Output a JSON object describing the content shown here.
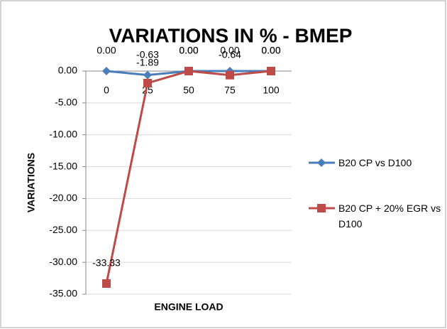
{
  "chart_data": {
    "type": "line",
    "title": "VARIATIONS IN % -  BMEP",
    "x_label": "ENGINE LOAD",
    "y_label": "VARIATIONS",
    "categories": [
      "0",
      "25",
      "50",
      "75",
      "100"
    ],
    "series": [
      {
        "name": "B20 CP vs D100",
        "color": "#4a7ebb",
        "marker": "diamond",
        "values": [
          0,
          -0.63,
          0,
          0,
          0
        ],
        "value_labels": [
          "0.00",
          "-0.63",
          "0.00",
          "0.00",
          "0.00"
        ]
      },
      {
        "name": "B20 CP + 20% EGR vs D100",
        "color": "#be4b48",
        "marker": "square",
        "values": [
          -33.33,
          -1.89,
          0,
          -0.64,
          0
        ],
        "value_labels": [
          "-33.33",
          "-1.89",
          "0.00",
          "-0.64",
          "0.00"
        ]
      }
    ],
    "ylim": [
      -35,
      0
    ],
    "yticks": [
      {
        "value": 0,
        "label": "0.00"
      },
      {
        "value": -5,
        "label": "-5.00"
      },
      {
        "value": -10,
        "label": "-10.00"
      },
      {
        "value": -15,
        "label": "-15.00"
      },
      {
        "value": -20,
        "label": "-20.00"
      },
      {
        "value": -25,
        "label": "-25.00"
      },
      {
        "value": -30,
        "label": "-30.00"
      },
      {
        "value": -35,
        "label": "-35.00"
      }
    ],
    "grid": true,
    "legend": "right"
  }
}
